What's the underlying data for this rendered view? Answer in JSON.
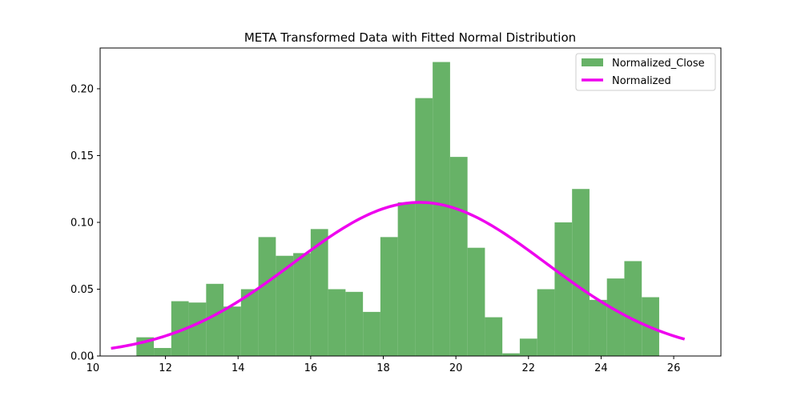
{
  "chart_data": {
    "type": "bar",
    "title": "META Transformed Data with Fitted Normal Distribution",
    "xlabel": "",
    "ylabel": "",
    "xlim": [
      10.2,
      27.3
    ],
    "ylim": [
      0,
      0.2305
    ],
    "xticks": [
      10,
      12,
      14,
      16,
      18,
      20,
      22,
      24,
      26
    ],
    "yticks": [
      0.0,
      0.05,
      0.1,
      0.15,
      0.2
    ],
    "ytick_labels": [
      "0.00",
      "0.05",
      "0.10",
      "0.15",
      "0.20"
    ],
    "grid": false,
    "legend_position": "top-right",
    "histogram": {
      "name": "Normalized_Close",
      "color": "#67b267",
      "bin_start": 11.2,
      "bin_width": 0.48,
      "values": [
        0.014,
        0.006,
        0.041,
        0.04,
        0.054,
        0.037,
        0.05,
        0.089,
        0.075,
        0.077,
        0.095,
        0.05,
        0.048,
        0.033,
        0.089,
        0.115,
        0.193,
        0.22,
        0.149,
        0.081,
        0.029,
        0.002,
        0.013,
        0.05,
        0.1,
        0.125,
        0.042,
        0.058,
        0.071,
        0.044
      ]
    },
    "fit": {
      "name": "Normalized",
      "color": "#ee00ee",
      "mean": 19.0,
      "std": 3.47,
      "x_range": [
        10.5,
        26.3
      ]
    }
  }
}
